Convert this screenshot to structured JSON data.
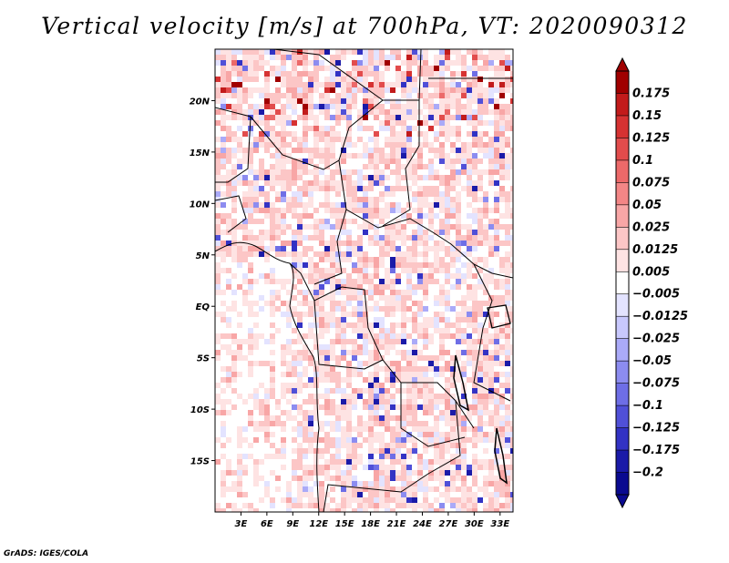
{
  "title": "Vertical velocity [m/s] at 700hPa, VT: 2020090312",
  "footer": "GrADS: IGES/COLA",
  "chart_data": {
    "type": "heatmap",
    "title": "Vertical velocity [m/s] at 700hPa, VT: 2020090312",
    "variable": "Vertical velocity",
    "units": "m/s",
    "level": "700hPa",
    "valid_time": "2020090312",
    "xlim": [
      0,
      34.5
    ],
    "ylim": [
      -20,
      25
    ],
    "xticks": [
      {
        "value": 3,
        "label": "3E"
      },
      {
        "value": 6,
        "label": "6E"
      },
      {
        "value": 9,
        "label": "9E"
      },
      {
        "value": 12,
        "label": "12E"
      },
      {
        "value": 15,
        "label": "15E"
      },
      {
        "value": 18,
        "label": "18E"
      },
      {
        "value": 21,
        "label": "21E"
      },
      {
        "value": 24,
        "label": "24E"
      },
      {
        "value": 27,
        "label": "27E"
      },
      {
        "value": 30,
        "label": "30E"
      },
      {
        "value": 33,
        "label": "33E"
      }
    ],
    "yticks": [
      {
        "value": 20,
        "label": "20N"
      },
      {
        "value": 15,
        "label": "15N"
      },
      {
        "value": 10,
        "label": "10N"
      },
      {
        "value": 5,
        "label": "5N"
      },
      {
        "value": 0,
        "label": "EQ"
      },
      {
        "value": -5,
        "label": "5S"
      },
      {
        "value": -10,
        "label": "10S"
      },
      {
        "value": -15,
        "label": "15S"
      }
    ],
    "colorbar": {
      "labels": [
        "0.175",
        "0.15",
        "0.125",
        "0.1",
        "0.075",
        "0.05",
        "0.025",
        "0.0125",
        "0.005",
        "−0.005",
        "−0.0125",
        "−0.025",
        "−0.05",
        "−0.075",
        "−0.1",
        "−0.125",
        "−0.175",
        "−0.2"
      ],
      "colors": [
        "#a00000",
        "#c21b1b",
        "#d63232",
        "#e24c4c",
        "#ec6969",
        "#f38686",
        "#f8a6a6",
        "#fcc6c6",
        "#fee3e3",
        "#ffffff",
        "#e3e3ff",
        "#c8c8fd",
        "#aaaaf8",
        "#8c8cf0",
        "#6e6ee6",
        "#5050d8",
        "#3232c4",
        "#1a1aa8",
        "#0a0a90"
      ]
    }
  }
}
